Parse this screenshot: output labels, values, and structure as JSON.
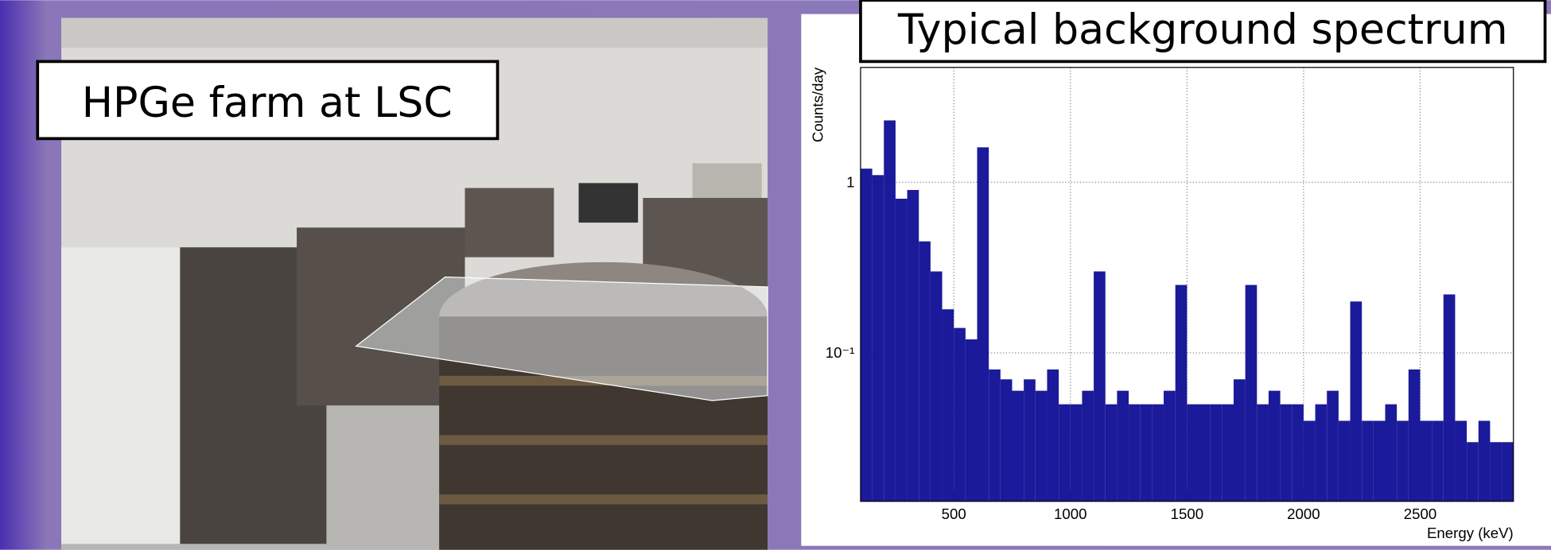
{
  "slide": {
    "photo_caption": "HPGe farm at LSC"
  },
  "chart_data": {
    "type": "histogram",
    "title": "Typical background spectrum",
    "x_label": "Energy (keV)",
    "y_label": "Counts/day",
    "bins": [
      100,
      150,
      200,
      250,
      300,
      350,
      400,
      450,
      500,
      550,
      600,
      650,
      700,
      750,
      800,
      850,
      900,
      950,
      1000,
      1050,
      1100,
      1150,
      1200,
      1250,
      1300,
      1350,
      1400,
      1450,
      1500,
      1550,
      1600,
      1650,
      1700,
      1750,
      1800,
      1850,
      1900,
      1950,
      2000,
      2050,
      2100,
      2150,
      2200,
      2250,
      2300,
      2350,
      2400,
      2450,
      2500,
      2550,
      2600,
      2650,
      2700,
      2750,
      2800,
      2850,
      2900
    ],
    "values": [
      1.2,
      1.1,
      2.3,
      0.8,
      0.9,
      0.45,
      0.3,
      0.18,
      0.14,
      0.12,
      1.6,
      0.08,
      0.07,
      0.06,
      0.07,
      0.06,
      0.08,
      0.05,
      0.05,
      0.06,
      0.3,
      0.05,
      0.06,
      0.05,
      0.05,
      0.05,
      0.06,
      0.25,
      0.05,
      0.05,
      0.05,
      0.05,
      0.07,
      0.25,
      0.05,
      0.06,
      0.05,
      0.05,
      0.04,
      0.05,
      0.06,
      0.04,
      0.2,
      0.04,
      0.04,
      0.05,
      0.04,
      0.08,
      0.04,
      0.04,
      0.22,
      0.04,
      0.03,
      0.04,
      0.03,
      0.03
    ],
    "color": "#1a1a9a",
    "xlim": [
      100,
      2900
    ],
    "xticks": [
      500,
      1000,
      1500,
      2000,
      2500
    ],
    "ylim": [
      0.0135,
      4.7
    ],
    "yticks": [
      {
        "value": 0.1,
        "label": "10⁻¹"
      },
      1
    ],
    "log_y": true,
    "grid": true
  }
}
